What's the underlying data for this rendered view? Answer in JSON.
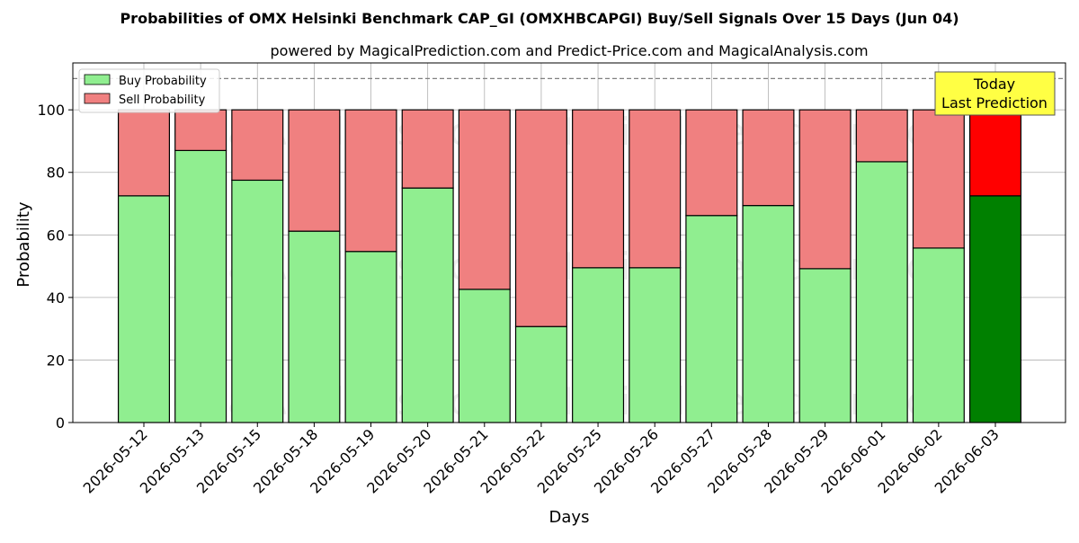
{
  "chart_data": {
    "type": "bar",
    "stacked": true,
    "title": "Probabilities of OMX Helsinki Benchmark CAP_GI (OMXHBCAPGI) Buy/Sell Signals Over 15 Days (Jun 04)",
    "subtitle": "powered by MagicalPrediction.com and Predict-Price.com and MagicalAnalysis.com",
    "xlabel": "Days",
    "ylabel": "Probability",
    "ylim": [
      0,
      115
    ],
    "yticks": [
      0,
      20,
      40,
      60,
      80,
      100
    ],
    "reference_line": 110,
    "grid": true,
    "legend_position": "top-left",
    "categories": [
      "2026-05-12",
      "2026-05-13",
      "2026-05-15",
      "2026-05-18",
      "2026-05-19",
      "2026-05-20",
      "2026-05-21",
      "2026-05-22",
      "2026-05-25",
      "2026-05-26",
      "2026-05-27",
      "2026-05-28",
      "2026-05-29",
      "2026-06-01",
      "2026-06-02",
      "2026-06-03"
    ],
    "series": [
      {
        "name": "Buy Probability",
        "color": "#90ee90",
        "highlight_color": "#008000",
        "values": [
          72.5,
          87,
          77.5,
          61.2,
          54.7,
          75,
          42.6,
          30.7,
          49.5,
          49.5,
          66.2,
          69.4,
          49.2,
          83.4,
          55.8,
          72.5
        ]
      },
      {
        "name": "Sell Probability",
        "color": "#f08080",
        "highlight_color": "#ff0000",
        "values": [
          27.5,
          13,
          22.5,
          38.8,
          45.3,
          25,
          57.4,
          69.3,
          50.5,
          50.5,
          33.8,
          30.6,
          50.8,
          16.6,
          44.2,
          27.5
        ]
      }
    ],
    "highlight_index": 15,
    "annotation": {
      "line1": "Today",
      "line2": "Last Prediction",
      "background": "#ffff44"
    },
    "watermarks": [
      "MagicalAnalysis.com",
      "MagicalPrediction.com"
    ]
  }
}
